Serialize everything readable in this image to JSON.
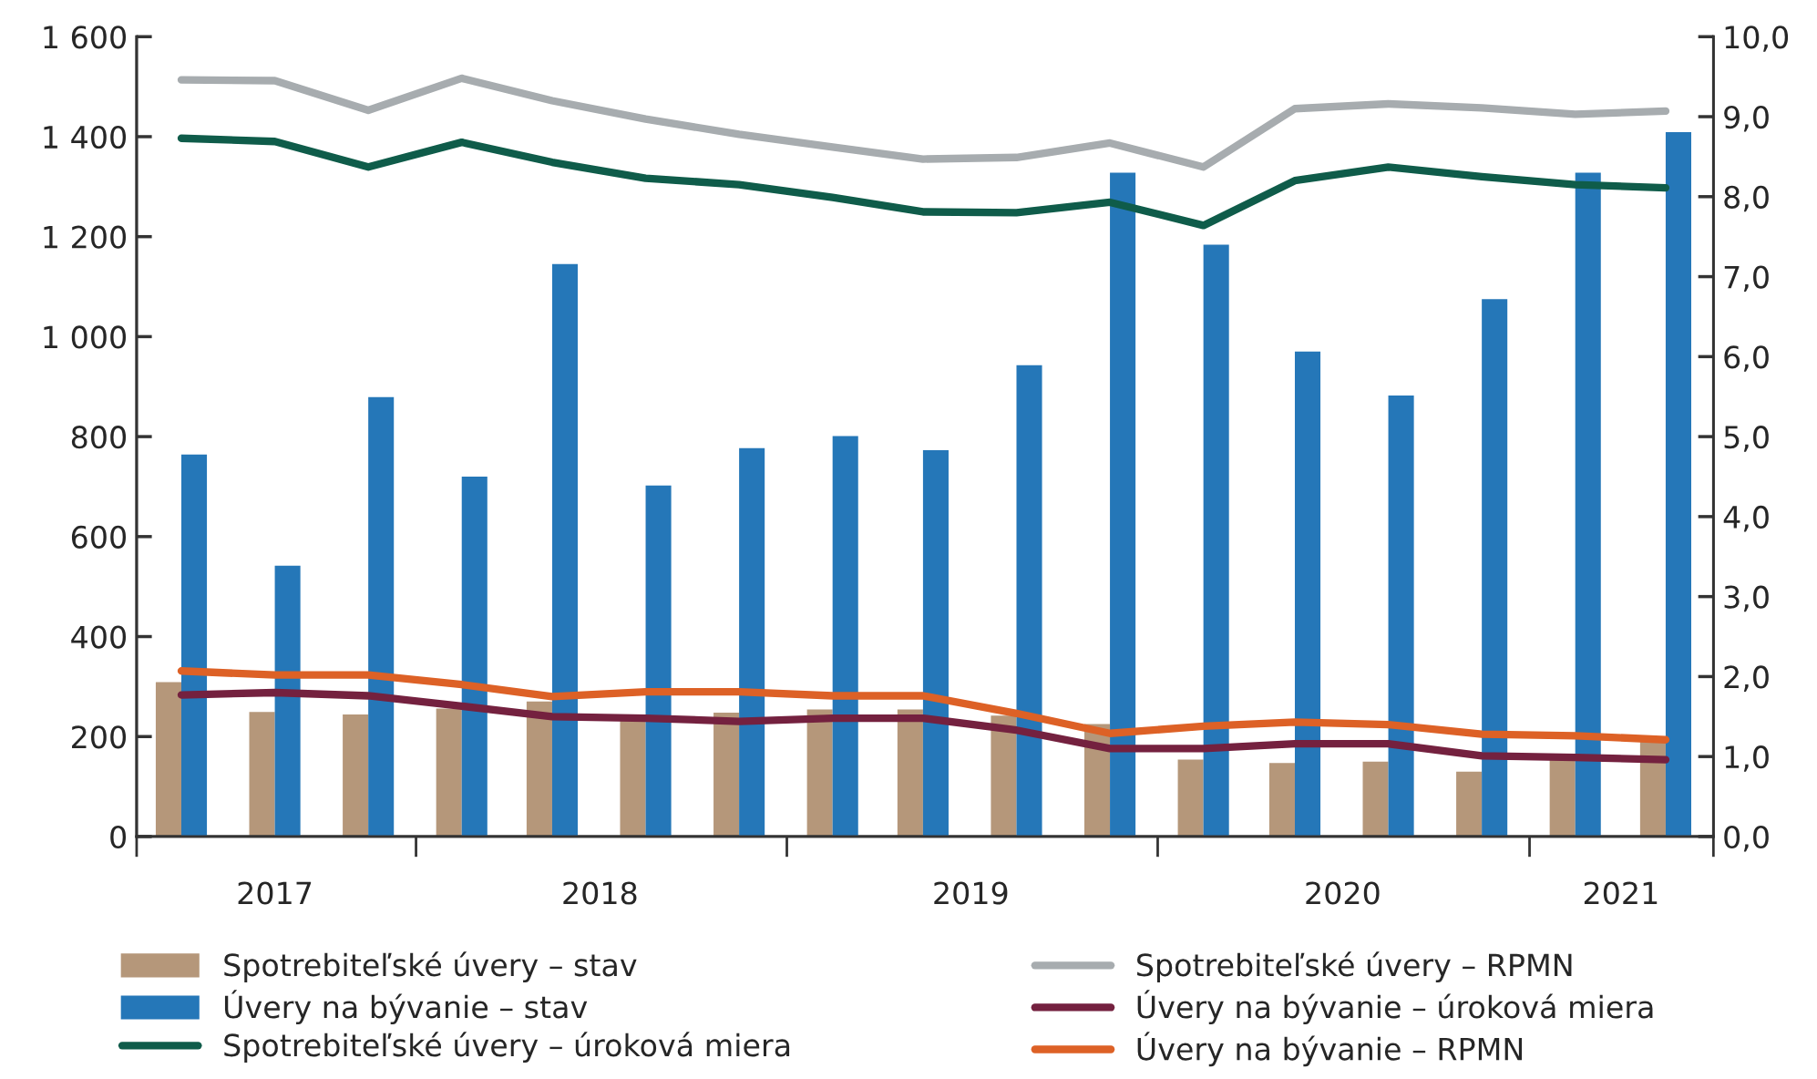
{
  "chart_data": {
    "type": "bar",
    "x": [
      "2017-05-15",
      "2017-08-15",
      "2017-11-15",
      "2018-02-15",
      "2018-05-15",
      "2018-08-15",
      "2018-11-15",
      "2019-02-15",
      "2019-05-15",
      "2019-08-15",
      "2019-11-15",
      "2020-02-15",
      "2020-05-15",
      "2020-08-15",
      "2020-11-15",
      "2021-02-15",
      "2021-05-15"
    ],
    "xlim": [
      "2017-04-01",
      "2021-07-01"
    ],
    "xticks": [
      {
        "value": "2017-04-01",
        "label": null
      },
      {
        "value": "2017-08-15",
        "label": "2017"
      },
      {
        "value": "2018-01-01",
        "label": null
      },
      {
        "value": "2018-07-01",
        "label": "2018"
      },
      {
        "value": "2019-01-01",
        "label": null
      },
      {
        "value": "2019-07-01",
        "label": "2019"
      },
      {
        "value": "2020-01-01",
        "label": null
      },
      {
        "value": "2020-07-01",
        "label": "2020"
      },
      {
        "value": "2021-01-01",
        "label": null
      },
      {
        "value": "2021-04-01",
        "label": "2021"
      },
      {
        "value": "2021-07-01",
        "label": null
      }
    ],
    "ylim": [
      0,
      1600
    ],
    "yticks": [
      {
        "value": 0,
        "label": "0"
      },
      {
        "value": 200,
        "label": "200"
      },
      {
        "value": 400,
        "label": "400"
      },
      {
        "value": 600,
        "label": "600"
      },
      {
        "value": 800,
        "label": "800"
      },
      {
        "value": 1000,
        "label": "1 000"
      },
      {
        "value": 1200,
        "label": "1 200"
      },
      {
        "value": 1400,
        "label": "1 400"
      },
      {
        "value": 1600,
        "label": "1 600"
      }
    ],
    "y2lim": [
      0,
      10
    ],
    "y2ticks": [
      {
        "value": 0,
        "label": "0,0"
      },
      {
        "value": 1,
        "label": "1,0"
      },
      {
        "value": 2,
        "label": "2,0"
      },
      {
        "value": 3,
        "label": "3,0"
      },
      {
        "value": 4,
        "label": "4,0"
      },
      {
        "value": 5,
        "label": "5,0"
      },
      {
        "value": 6,
        "label": "6,0"
      },
      {
        "value": 7,
        "label": "7,0"
      },
      {
        "value": 8,
        "label": "8,0"
      },
      {
        "value": 9,
        "label": "9,0"
      },
      {
        "value": 10,
        "label": "10,0"
      }
    ],
    "grid": false,
    "legend": "bottom",
    "series": [
      {
        "name": "Spotrebiteľské úvery – stav",
        "color": "#b5977a",
        "values": [
          309,
          249,
          244,
          256,
          270,
          240,
          248,
          254,
          254,
          242,
          225,
          154,
          147,
          150,
          130,
          160,
          190
        ]
      },
      {
        "name": "Úvery na bývanie – stav",
        "color": "#2577b8",
        "values": [
          764,
          542,
          879,
          720,
          1145,
          702,
          777,
          801,
          773,
          943,
          1328,
          1184,
          970,
          882,
          1075,
          1328,
          1409
        ]
      },
      {
        "name": "Spotrebiteľské úvery – úroková miera",
        "type": "line",
        "axis": "y2",
        "color": "#0f5c4a",
        "values": [
          8.73,
          8.69,
          8.37,
          8.68,
          8.43,
          8.23,
          8.15,
          7.99,
          7.81,
          7.8,
          7.93,
          7.64,
          8.2,
          8.37,
          8.25,
          8.15,
          8.11
        ]
      },
      {
        "name": "Spotrebiteľské úvery – RPMN",
        "type": "line",
        "axis": "y2",
        "color": "#a7acaf",
        "values": [
          9.46,
          9.45,
          9.08,
          9.48,
          9.2,
          8.97,
          8.78,
          8.62,
          8.47,
          8.49,
          8.67,
          8.37,
          9.1,
          9.16,
          9.11,
          9.03,
          9.07
        ]
      },
      {
        "name": "Úvery na bývanie – úroková miera",
        "type": "line",
        "axis": "y2",
        "color": "#74213f",
        "values": [
          1.77,
          1.8,
          1.76,
          1.63,
          1.5,
          1.48,
          1.44,
          1.48,
          1.48,
          1.33,
          1.1,
          1.1,
          1.16,
          1.16,
          1.01,
          0.99,
          0.96
        ]
      },
      {
        "name": "Úvery na bývanie – RPMN",
        "type": "line",
        "axis": "y2",
        "color": "#dd6126",
        "values": [
          2.07,
          2.02,
          2.02,
          1.9,
          1.75,
          1.81,
          1.81,
          1.76,
          1.76,
          1.54,
          1.29,
          1.38,
          1.43,
          1.4,
          1.28,
          1.26,
          1.21
        ]
      }
    ]
  }
}
